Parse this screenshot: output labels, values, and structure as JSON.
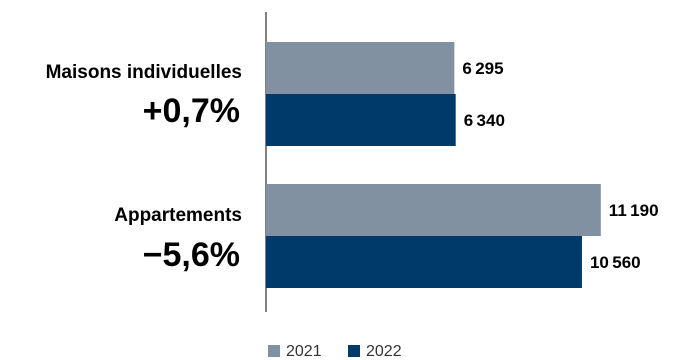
{
  "chart_data": {
    "type": "bar",
    "orientation": "horizontal",
    "categories": [
      "Maisons individuelles",
      "Appartements"
    ],
    "changes": [
      "+0,7%",
      "−5,6%"
    ],
    "series": [
      {
        "name": "2021",
        "color": "#8291A2",
        "values": [
          6295,
          11190
        ],
        "value_labels": [
          "6 295",
          "11 190"
        ]
      },
      {
        "name": "2022",
        "color": "#003A6B",
        "values": [
          6340,
          10560
        ],
        "value_labels": [
          "6 340",
          "10 560"
        ]
      }
    ],
    "xlim": [
      0,
      12500
    ],
    "grid": false,
    "legend": "bottom-center"
  }
}
